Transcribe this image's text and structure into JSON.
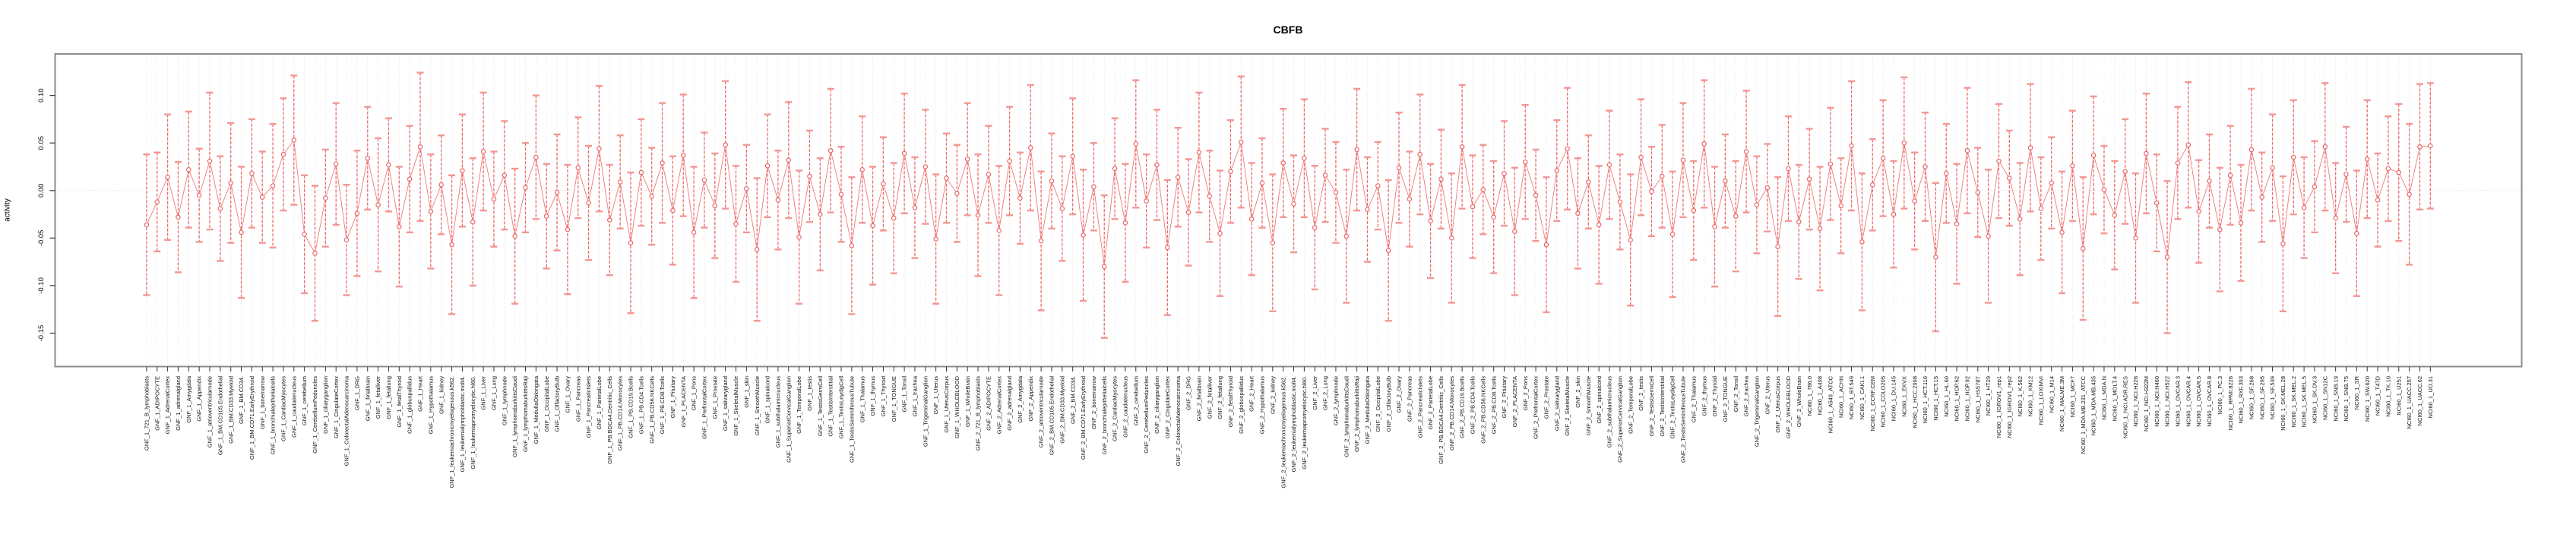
{
  "figure": {
    "title": "CBFB",
    "ylabel": "activity"
  },
  "chart_data": {
    "type": "scatter",
    "subtype": "means-with-confidence-error-bars",
    "title": "CBFB",
    "xlabel": "",
    "ylabel": "activity",
    "ylim": [
      -0.185,
      0.145
    ],
    "ytick_labels": [
      "0.10",
      "0.05",
      "0.00",
      "-0.05",
      "-0.10",
      "-0.15"
    ],
    "grid": "vertical dotted gridline at every category; horizontal dotted line at y=0",
    "legend": "none",
    "point_style": "open circle connected by line, with capped error bars",
    "x_tick_label_rotation": 90,
    "colors": {
      "whisker": "#ee6a6a",
      "cap": "#f39693",
      "point_stroke": "#e96060",
      "point_fill": "#ffffff",
      "connector": "#ef7a7a",
      "gridline": "#dcdcdc",
      "zero_line": "#c9c9c9",
      "box": "#8e8e8e",
      "tick": "#333333",
      "text": "#111111"
    },
    "categories": [
      "GNF_1_721_B_lymphoblasts",
      "GNF_1_ADIPOCYTE",
      "GNF_1_AdrenalCortex",
      "GNF_1_adrenalgland",
      "GNF_1_Amygdala",
      "GNF_1_Appendix",
      "GNF_1_atrioventricularnode",
      "GNF_1_BM.CD105.Endothelial",
      "GNF_1_BM.CD33.Myeloid",
      "GNF_1_BM.CD34.",
      "GNF_1_BM.CD71.EarlyErythroid",
      "GNF_1_bonemarrow",
      "GNF_1_bronchialepithelialcells",
      "GNF_1_CardiacMyocytes",
      "GNF_1_caudatenucleus",
      "GNF_1_cerebellum",
      "GNF_1_CerebellumPeduncles",
      "GNF_1_ciliaryganglion",
      "GNF_1_CingulateCortex",
      "GNF_1_ColorectalAdenocarcinoma",
      "GNF_1_DRG",
      "GNF_1_fetalbrain",
      "GNF_1_fetalliver",
      "GNF_1_fetallung",
      "GNF_1_fetalThyroid",
      "GNF_1_globuspallidus",
      "GNF_1_Heart",
      "GNF_1_Hypothalamus",
      "GNF_1_kidney",
      "GNF_1_leukemiachronicmyelogenous.k562.",
      "GNF_1_leukemialymphoblastic.molt4.",
      "GNF_1_leukemiapromyelocytic.hl60.",
      "GNF_1_Liver",
      "GNF_1_Lung",
      "GNF_1_lymphnode",
      "GNF_1_lymphomaburkittsDaudi",
      "GNF_1_lymphomaburkittsRaji",
      "GNF_1_MedullaOblongata",
      "GNF_1_OccipitalLobe",
      "GNF_1_OlfactoryBulb",
      "GNF_1_Ovary",
      "GNF_1_Pancreas",
      "GNF_1_PancreaticIslets",
      "GNF_1_ParietalLobe",
      "GNF_1_PB.BDCA4.Dentritic_Cells",
      "GNF_1_PB.CD14.Monocytes",
      "GNF_1_PB.CD19.Bcells",
      "GNF_1_PB.CD4.Tcells",
      "GNF_1_PB.CD56.NKCells",
      "GNF_1_PB.CD8.Tcells",
      "GNF_1_Pituitary",
      "GNF_1_PLACENTA",
      "GNF_1_Pons",
      "GNF_1_PrefrontalCortex",
      "GNF_1_Prostate",
      "GNF_1_salivarygland",
      "GNF_1_SkeletalMuscle",
      "GNF_1_skin",
      "GNF_1_SmoothMuscle",
      "GNF_1_spinalcord",
      "GNF_1_subthalamicnucleus",
      "GNF_1_SuperiorCervicalGanglion",
      "GNF_1_TemporalLobe",
      "GNF_1_testis",
      "GNF_1_TestisGermCell",
      "GNF_1_TestisInterstitial",
      "GNF_1_TestisLeydigCell",
      "GNF_1_TestisSeminiferousTubule",
      "GNF_1_Thalamus",
      "GNF_1_thymus",
      "GNF_1_Thyroid",
      "GNF_1_TONGUE",
      "GNF_1_Tonsil",
      "GNF_1_trachea",
      "GNF_1_TrigeminalGanglion",
      "GNF_1_Uterus",
      "GNF_1_UterusCorpus",
      "GNF_1_WHOLEBLOOD",
      "GNF_1_WholeBrain",
      "GNF_2_721_B_lymphoblasts",
      "GNF_2_ADIPOCYTE",
      "GNF_2_AdrenalCortex",
      "GNF_2_adrenalgland",
      "GNF_2_Amygdala",
      "GNF_2_Appendix",
      "GNF_2_atrioventricularnode",
      "GNF_2_BM.CD105.Endothelial",
      "GNF_2_BM.CD33.Myeloid",
      "GNF_2_BM.CD34.",
      "GNF_2_BM.CD71.EarlyErythroid",
      "GNF_2_bonemarrow",
      "GNF_2_bronchialepithelialcells",
      "GNF_2_CardiacMyocytes",
      "GNF_2_caudatenucleus",
      "GNF_2_cerebellum",
      "GNF_2_CerebellumPeduncles",
      "GNF_2_ciliaryganglion",
      "GNF_2_CingulateCortex",
      "GNF_2_ColorectalAdenocarcinoma",
      "GNF_2_DRG",
      "GNF_2_fetalbrain",
      "GNF_2_fetalliver",
      "GNF_2_fetallung",
      "GNF_2_fetalThyroid",
      "GNF_2_globuspallidus",
      "GNF_2_Heart",
      "GNF_2_Hypothalamus",
      "GNF_2_kidney",
      "GNF_2_leukemiachronicmyelogenous.k562.",
      "GNF_2_leukemialymphoblastic.molt4.",
      "GNF_2_leukemiapromyelocytic.hl60.",
      "GNF_2_Liver",
      "GNF_2_Lung",
      "GNF_2_lymphnode",
      "GNF_2_lymphomaburkittsDaudi",
      "GNF_2_lymphomaburkittsRaji",
      "GNF_2_MedullaOblongata",
      "GNF_2_OccipitalLobe",
      "GNF_2_OlfactoryBulb",
      "GNF_2_Ovary",
      "GNF_2_Pancreas",
      "GNF_2_PancreaticIslets",
      "GNF_2_ParietalLobe",
      "GNF_2_PB.BDCA4.Dentritic_Cells",
      "GNF_2_PB.CD14.Monocytes",
      "GNF_2_PB.CD19.Bcells",
      "GNF_2_PB.CD4.Tcells",
      "GNF_2_PB.CD56.NKCells",
      "GNF_2_PB.CD8.Tcells",
      "GNF_2_Pituitary",
      "GNF_2_PLACENTA",
      "GNF_2_Pons",
      "GNF_2_PrefrontalCortex",
      "GNF_2_Prostate",
      "GNF_2_salivarygland",
      "GNF_2_SkeletalMuscle",
      "GNF_2_skin",
      "GNF_2_SmoothMuscle",
      "GNF_2_spinalcord",
      "GNF_2_subthalamicnucleus",
      "GNF_2_SuperiorCervicalGanglion",
      "GNF_2_TemporalLobe",
      "GNF_2_testis",
      "GNF_2_TestisGermCell",
      "GNF_2_TestisInterstitial",
      "GNF_2_TestisLeydigCell",
      "GNF_2_TestisSeminiferousTubule",
      "GNF_2_Thalamus",
      "GNF_2_thymus",
      "GNF_2_Thyroid",
      "GNF_2_TONGUE",
      "GNF_2_Tonsil",
      "GNF_2_trachea",
      "GNF_2_TrigeminalGanglion",
      "GNF_2_Uterus",
      "GNF_2_UterusCorpus",
      "GNF_2_WHOLEBLOOD",
      "GNF_2_WholeBrain",
      "NCI60_1_786.0",
      "NCI60_1_A498",
      "NCI60_1_A549_ATCC",
      "NCI60_1_ACHN",
      "NCI60_1_BT.549",
      "NCI60_1_CAKI.1",
      "NCI60_1_CCRF.CEM",
      "NCI60_1_COLO205",
      "NCI60_1_DU.145",
      "NCI60_1_EKVX",
      "NCI60_1_HCC.2998",
      "NCI60_1_HCT.116",
      "NCI60_1_HCT.15",
      "NCI60_1_HL.60",
      "NCI60_1_HOP.62",
      "NCI60_1_HOP.92",
      "NCI60_1_HS578T",
      "NCI60_1_HT29",
      "NCI60_1_IGROV1_rep1",
      "NCI60_1_IGROV1_rep2",
      "NCI60_1_K.562",
      "NCI60_1_KM12",
      "NCI60_1_LOXIMVI",
      "NCI60_1_M14",
      "NCI60_1_MALME.3M",
      "NCI60_1_MCF7",
      "NCI60_1_MDA.MB.231_ATCC",
      "NCI60_1_MDA.MB.435",
      "NCI60_1_MDA.N",
      "NCI60_1_MOLT.4",
      "NCI60_1_NCI.ADR.RES",
      "NCI60_1_NCI.H226",
      "NCI60_1_NCI.H322M",
      "NCI60_1_NCI.H460",
      "NCI60_1_NCI.H522",
      "NCI60_1_OVCAR.3",
      "NCI60_1_OVCAR.4",
      "NCI60_1_OVCAR.5",
      "NCI60_1_OVCAR.8",
      "NCI60_1_PC.3",
      "NCI60_1_RPMI.8226",
      "NCI60_1_RXF.393",
      "NCI60_1_SF.268",
      "NCI60_1_SF.295",
      "NCI60_1_SF.539",
      "NCI60_1_SK.MEL.28",
      "NCI60_1_SK.MEL.2",
      "NCI60_1_SK.MEL.5",
      "NCI60_1_SK.OV.3",
      "NCI60_1_SN12C",
      "NCI60_1_SNB.19",
      "NCI60_1_SNB.75",
      "NCI60_1_SR",
      "NCI60_1_SW.620",
      "NCI60_1_T47D",
      "NCI60_1_TK.10",
      "NCI60_1_U251",
      "NCI60_1_UACC.257",
      "NCI60_1_UACC.62",
      "NCI60_1_UO.31"
    ],
    "series": [
      {
        "name": "activity",
        "means": [
          -0.036,
          -0.012,
          0.014,
          -0.028,
          0.022,
          -0.005,
          0.031,
          -0.019,
          0.008,
          -0.044,
          0.018,
          -0.007,
          0.005,
          0.038,
          0.053,
          -0.046,
          -0.066,
          -0.008,
          0.028,
          -0.052,
          -0.024,
          0.034,
          -0.015,
          0.027,
          -0.038,
          0.012,
          0.046,
          -0.022,
          0.006,
          -0.057,
          0.021,
          -0.033,
          0.041,
          -0.009,
          0.016,
          -0.048,
          0.003,
          0.035,
          -0.027,
          -0.002,
          -0.041,
          0.024,
          -0.013,
          0.044,
          -0.031,
          0.009,
          -0.055,
          0.019,
          -0.006,
          0.029,
          -0.021,
          0.037,
          -0.044,
          0.011,
          -0.016,
          0.048,
          -0.035,
          0.002,
          -0.062,
          0.026,
          -0.01,
          0.032,
          -0.049,
          0.015,
          -0.025,
          0.042,
          -0.004,
          -0.058,
          0.022,
          -0.037,
          0.007,
          -0.029,
          0.039,
          -0.018,
          0.025,
          -0.051,
          0.013,
          -0.003,
          0.033,
          -0.026,
          0.017,
          -0.042,
          0.031,
          -0.008,
          0.045,
          -0.053,
          0.01,
          -0.019,
          0.036,
          -0.047,
          0.004,
          -0.08,
          0.023,
          -0.034,
          0.049,
          -0.011,
          0.027,
          -0.06,
          0.014,
          -0.023,
          0.04,
          -0.006,
          -0.045,
          0.02,
          0.051,
          -0.03,
          0.008,
          -0.055,
          0.029,
          -0.014,
          0.034,
          -0.039,
          0.016,
          -0.002,
          -0.048,
          0.043,
          -0.02,
          0.005,
          -0.063,
          0.024,
          -0.009,
          0.038,
          -0.032,
          0.012,
          -0.05,
          0.046,
          -0.017,
          0.001,
          -0.028,
          0.018,
          -0.043,
          0.03,
          -0.005,
          -0.057,
          0.021,
          0.044,
          -0.024,
          0.009,
          -0.036,
          0.027,
          -0.012,
          -0.052,
          0.035,
          -0.001,
          0.015,
          -0.046,
          0.032,
          -0.021,
          0.049,
          -0.038,
          0.01,
          -0.027,
          0.041,
          -0.015,
          0.003,
          -0.059,
          0.023,
          -0.033,
          0.012,
          -0.04,
          0.028,
          -0.016,
          0.047,
          -0.054,
          0.006,
          0.034,
          -0.025,
          0.05,
          -0.011,
          0.025,
          -0.07,
          0.018,
          -0.035,
          0.042,
          -0.002,
          -0.048,
          0.031,
          0.013,
          -0.03,
          0.045,
          -0.019,
          0.008,
          -0.044,
          0.026,
          -0.061,
          0.037,
          0.001,
          -0.026,
          0.02,
          -0.05,
          0.039,
          -0.013,
          -0.07,
          0.029,
          0.048,
          -0.022,
          0.01,
          -0.041,
          0.016,
          -0.034,
          0.043,
          -0.007,
          0.024,
          -0.056,
          0.035,
          -0.018,
          0.004,
          0.046,
          -0.029,
          0.017,
          -0.045,
          0.033,
          -0.01,
          0.023,
          0.019,
          -0.004,
          0.046,
          0.047
        ],
        "ci_half_width": [
          0.074,
          0.052,
          0.066,
          0.058,
          0.061,
          0.049,
          0.072,
          0.055,
          0.063,
          0.069,
          0.057,
          0.048,
          0.065,
          0.059,
          0.068,
          0.062,
          0.071,
          0.051,
          0.064,
          0.058,
          0.066,
          0.054,
          0.07,
          0.049,
          0.063,
          0.056,
          0.078,
          0.06,
          0.052,
          0.073,
          0.059,
          0.067,
          0.062,
          0.05,
          0.057,
          0.071,
          0.047,
          0.065,
          0.055,
          0.061,
          0.068,
          0.053,
          0.06,
          0.066,
          0.058,
          0.049,
          0.074,
          0.056,
          0.051,
          0.063,
          0.057,
          0.064,
          0.069,
          0.05,
          0.055,
          0.067,
          0.061,
          0.046,
          0.075,
          0.054,
          0.052,
          0.061,
          0.07,
          0.048,
          0.059,
          0.065,
          0.05,
          0.072,
          0.056,
          0.062,
          0.049,
          0.058,
          0.063,
          0.053,
          0.06,
          0.068,
          0.047,
          0.051,
          0.059,
          0.064,
          0.051,
          0.068,
          0.057,
          0.048,
          0.066,
          0.073,
          0.05,
          0.055,
          0.061,
          0.069,
          0.046,
          0.075,
          0.053,
          0.062,
          0.067,
          0.049,
          0.058,
          0.071,
          0.052,
          0.056,
          0.063,
          0.048,
          0.066,
          0.054,
          0.069,
          0.059,
          0.047,
          0.072,
          0.057,
          0.051,
          0.062,
          0.065,
          0.049,
          0.053,
          0.07,
          0.064,
          0.055,
          0.046,
          0.074,
          0.058,
          0.05,
          0.063,
          0.06,
          0.052,
          0.068,
          0.065,
          0.054,
          0.047,
          0.059,
          0.055,
          0.067,
          0.06,
          0.048,
          0.071,
          0.053,
          0.064,
          0.058,
          0.049,
          0.062,
          0.057,
          0.05,
          0.069,
          0.061,
          0.047,
          0.054,
          0.066,
          0.06,
          0.052,
          0.067,
          0.063,
          0.049,
          0.058,
          0.064,
          0.051,
          0.046,
          0.073,
          0.055,
          0.06,
          0.053,
          0.065,
          0.059,
          0.05,
          0.068,
          0.072,
          0.048,
          0.061,
          0.056,
          0.069,
          0.051,
          0.057,
          0.078,
          0.052,
          0.063,
          0.066,
          0.047,
          0.07,
          0.06,
          0.05,
          0.059,
          0.067,
          0.054,
          0.048,
          0.064,
          0.058,
          0.075,
          0.062,
          0.046,
          0.057,
          0.055,
          0.068,
          0.063,
          0.051,
          0.08,
          0.059,
          0.066,
          0.054,
          0.049,
          0.065,
          0.052,
          0.061,
          0.064,
          0.047,
          0.056,
          0.071,
          0.06,
          0.053,
          0.048,
          0.067,
          0.058,
          0.05,
          0.066,
          0.062,
          0.049,
          0.055,
          0.072,
          0.074,
          0.066,
          0.066
        ]
      }
    ]
  }
}
